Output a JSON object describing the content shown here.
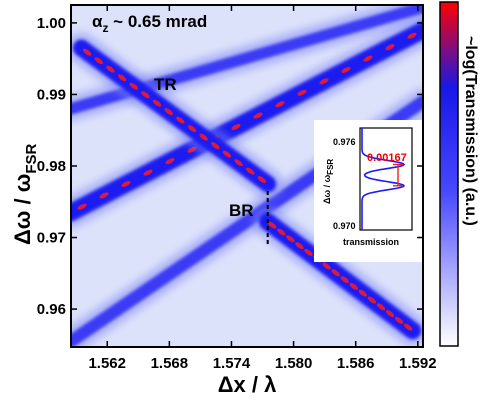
{
  "chart_data": {
    "type": "heatmap",
    "xlabel": "Δx / λ",
    "ylabel": "Δω / ω",
    "ylabel_sub": "FSR",
    "xlim": [
      1.5585,
      1.5925
    ],
    "ylim": [
      0.9547,
      1.0025
    ],
    "x_ticks": [
      1.562,
      1.568,
      1.574,
      1.58,
      1.586,
      1.592
    ],
    "x_tick_labels": [
      "1.562",
      "1.568",
      "1.574",
      "1.580",
      "1.586",
      "1.592"
    ],
    "y_ticks": [
      0.96,
      0.97,
      0.98,
      0.99,
      1.0
    ],
    "y_tick_labels": [
      "0.96",
      "0.97",
      "0.98",
      "0.99",
      "1.00"
    ],
    "annotation": "α",
    "annotation_sub": "z",
    "annotation_rest": " ~ 0.65 mrad",
    "label_tr": "TR",
    "label_br": "BR",
    "colorbar_label": "~log(Transmission) (a.u.)",
    "colormap": [
      "#ffffff",
      "#1c1cff",
      "#ff0000"
    ],
    "marker_x": 1.5775,
    "bands": [
      {
        "x": [
          1.5585,
          1.5925
        ],
        "y": [
          0.9555,
          0.989
        ],
        "intensity": 0.55
      },
      {
        "x": [
          1.5585,
          1.5925
        ],
        "y": [
          0.9735,
          0.999
        ],
        "intensity": 0.95
      },
      {
        "x": [
          1.5585,
          1.5925
        ],
        "y": [
          0.988,
          1.0022
        ],
        "intensity": 0.45
      },
      {
        "x": [
          1.5595,
          1.5775
        ],
        "y": [
          0.9965,
          0.9775
        ],
        "intensity": 0.9
      },
      {
        "x": [
          1.5775,
          1.5915
        ],
        "y": [
          0.9722,
          0.957
        ],
        "intensity": 0.95
      }
    ],
    "inset": {
      "ylabel": "Δω / ω",
      "ylabel_sub": "FSR",
      "xlabel": "transmission",
      "ylim": [
        0.969,
        0.977
      ],
      "y_ticks": [
        0.97,
        0.976
      ],
      "y_tick_labels": [
        "0.970",
        "0.976"
      ],
      "splitting_label": "0.00167",
      "splitting_range": [
        0.97247,
        0.97414
      ],
      "peaks": [
        0.97247,
        0.97414
      ]
    }
  }
}
